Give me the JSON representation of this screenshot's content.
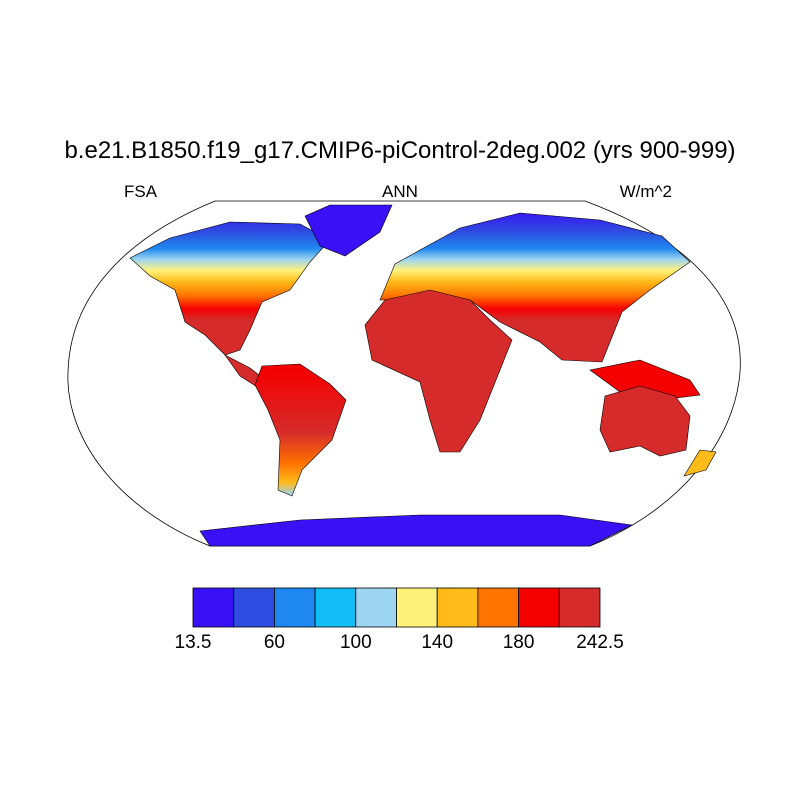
{
  "title": "b.e21.B1850.f19_g17.CMIP6-piControl-2deg.002 (yrs 900-999)",
  "left_label": "FSA",
  "center_label": "ANN",
  "right_label": "W/m^2",
  "colorbar": {
    "colors": [
      "#3a10f5",
      "#2e4de0",
      "#1e88f0",
      "#12bcf5",
      "#9ed5f0",
      "#fff27a",
      "#ffbb1a",
      "#ff7300",
      "#f50000",
      "#d62b2b"
    ],
    "labels": [
      "13.5",
      "60",
      "100",
      "140",
      "180",
      "242.5"
    ]
  }
}
